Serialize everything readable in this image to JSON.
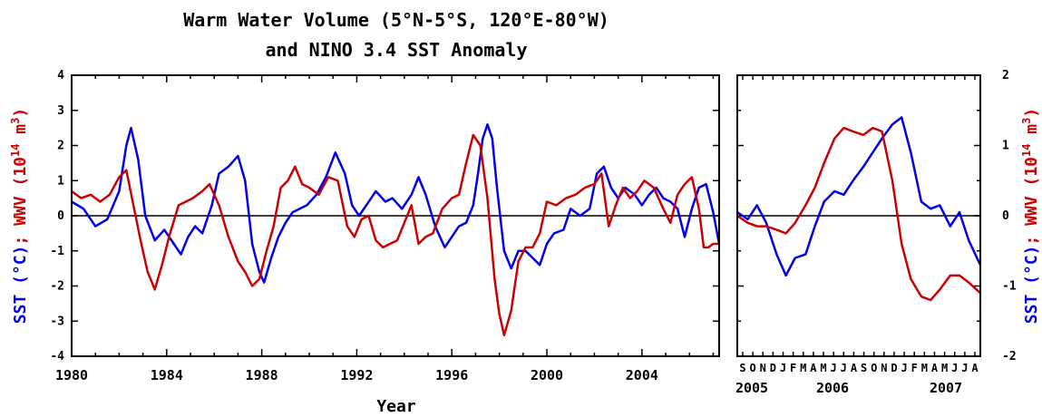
{
  "title_line1": "Warm Water Volume (5°N-5°S, 120°E-80°W)",
  "title_line2": "and NINO 3.4 SST Anomaly",
  "left_ylabel": {
    "sst": "SST (°C)",
    "sep": "; ",
    "wwv": "WWV (10",
    "sup": "14",
    "tail": " m",
    "sup3": "3",
    "close": ")"
  },
  "right_ylabel": {
    "sst": "SST (°C)",
    "sep": "; ",
    "wwv": "WWV (10",
    "sup": "14",
    "tail": " m",
    "sup3": "3",
    "close": ")"
  },
  "colors": {
    "sst": "#0000ee",
    "wwv": "#cc0000",
    "axis": "#000000"
  },
  "chart_data": [
    {
      "type": "line",
      "xlabel": "Year",
      "xlim": [
        1980,
        2007.25
      ],
      "ylim": [
        -4,
        4
      ],
      "y_ticks": [
        "-4",
        "-3",
        "-2",
        "-1",
        "0",
        "1",
        "2",
        "3",
        "4"
      ],
      "x_ticks": [
        "1980",
        "1984",
        "1988",
        "1992",
        "1996",
        "2000",
        "2004"
      ],
      "grid": false,
      "series": [
        {
          "key": "sst",
          "color": "#0000ee",
          "x": [
            1980,
            1980.5,
            1981,
            1981.5,
            1982,
            1982.3,
            1982.5,
            1982.8,
            1983.1,
            1983.5,
            1983.9,
            1984.3,
            1984.6,
            1984.9,
            1985.2,
            1985.5,
            1985.9,
            1986.2,
            1986.6,
            1987.0,
            1987.3,
            1987.6,
            1987.9,
            1988.1,
            1988.4,
            1988.7,
            1989.0,
            1989.3,
            1989.6,
            1989.9,
            1990.3,
            1990.7,
            1991.1,
            1991.5,
            1991.8,
            1992.1,
            1992.4,
            1992.8,
            1993.2,
            1993.5,
            1993.9,
            1994.3,
            1994.6,
            1994.9,
            1995.3,
            1995.7,
            1996.0,
            1996.3,
            1996.6,
            1996.9,
            1997.1,
            1997.3,
            1997.5,
            1997.7,
            1997.9,
            1998.2,
            1998.5,
            1998.8,
            1999.1,
            1999.4,
            1999.7,
            2000.0,
            2000.3,
            2000.7,
            2001.0,
            2001.4,
            2001.8,
            2002.1,
            2002.4,
            2002.7,
            2003.0,
            2003.3,
            2003.7,
            2004.0,
            2004.3,
            2004.6,
            2004.9,
            2005.2,
            2005.5,
            2005.8,
            2006.1,
            2006.4,
            2006.7,
            2007.0,
            2007.25
          ],
          "y": [
            0.4,
            0.2,
            -0.3,
            -0.1,
            0.7,
            2.0,
            2.5,
            1.6,
            0.0,
            -0.7,
            -0.4,
            -0.8,
            -1.1,
            -0.6,
            -0.3,
            -0.5,
            0.3,
            1.2,
            1.4,
            1.7,
            1.0,
            -0.8,
            -1.6,
            -1.9,
            -1.2,
            -0.6,
            -0.2,
            0.1,
            0.2,
            0.3,
            0.6,
            1.1,
            1.8,
            1.2,
            0.3,
            0.0,
            0.3,
            0.7,
            0.4,
            0.5,
            0.2,
            0.6,
            1.1,
            0.6,
            -0.3,
            -0.9,
            -0.6,
            -0.3,
            -0.2,
            0.3,
            1.2,
            2.2,
            2.6,
            2.2,
            0.8,
            -1.0,
            -1.5,
            -1.0,
            -1.0,
            -1.2,
            -1.4,
            -0.8,
            -0.5,
            -0.4,
            0.2,
            0.0,
            0.2,
            1.2,
            1.4,
            0.8,
            0.5,
            0.8,
            0.6,
            0.3,
            0.6,
            0.8,
            0.5,
            0.4,
            0.2,
            -0.6,
            0.2,
            0.8,
            0.9,
            0.1,
            -0.8
          ]
        },
        {
          "key": "wwv",
          "color": "#cc0000",
          "x": [
            1980,
            1980.4,
            1980.8,
            1981.2,
            1981.6,
            1982.0,
            1982.3,
            1982.6,
            1982.9,
            1983.2,
            1983.5,
            1983.8,
            1984.1,
            1984.5,
            1984.8,
            1985.1,
            1985.5,
            1985.8,
            1986.2,
            1986.6,
            1987.0,
            1987.3,
            1987.6,
            1987.9,
            1988.2,
            1988.5,
            1988.8,
            1989.1,
            1989.4,
            1989.7,
            1990.0,
            1990.4,
            1990.8,
            1991.2,
            1991.6,
            1991.9,
            1992.2,
            1992.5,
            1992.8,
            1993.1,
            1993.4,
            1993.7,
            1994.0,
            1994.3,
            1994.6,
            1994.9,
            1995.2,
            1995.6,
            1996.0,
            1996.3,
            1996.6,
            1996.9,
            1997.2,
            1997.5,
            1997.8,
            1998.0,
            1998.2,
            1998.5,
            1998.8,
            1999.1,
            1999.4,
            1999.7,
            2000.0,
            2000.4,
            2000.8,
            2001.2,
            2001.6,
            2002.0,
            2002.3,
            2002.6,
            2002.9,
            2003.2,
            2003.5,
            2003.8,
            2004.1,
            2004.5,
            2004.9,
            2005.2,
            2005.5,
            2005.8,
            2006.1,
            2006.4,
            2006.6,
            2006.8,
            2007.0,
            2007.25
          ],
          "y": [
            0.7,
            0.5,
            0.6,
            0.4,
            0.6,
            1.1,
            1.3,
            0.3,
            -0.7,
            -1.6,
            -2.1,
            -1.4,
            -0.6,
            0.3,
            0.4,
            0.5,
            0.7,
            0.9,
            0.3,
            -0.6,
            -1.3,
            -1.6,
            -2.0,
            -1.8,
            -1.0,
            -0.3,
            0.8,
            1.0,
            1.4,
            0.9,
            0.8,
            0.6,
            1.1,
            1.0,
            -0.3,
            -0.6,
            -0.1,
            0.0,
            -0.7,
            -0.9,
            -0.8,
            -0.7,
            -0.2,
            0.3,
            -0.8,
            -0.6,
            -0.5,
            0.2,
            0.5,
            0.6,
            1.5,
            2.3,
            2.0,
            0.5,
            -1.8,
            -2.8,
            -3.4,
            -2.7,
            -1.3,
            -0.9,
            -0.9,
            -0.5,
            0.4,
            0.3,
            0.5,
            0.6,
            0.8,
            0.9,
            1.2,
            -0.3,
            0.3,
            0.8,
            0.5,
            0.7,
            1.0,
            0.8,
            0.2,
            -0.2,
            0.6,
            0.9,
            1.1,
            0.2,
            -0.9,
            -0.9,
            -0.8,
            -0.8
          ]
        }
      ]
    },
    {
      "type": "line",
      "xlim": [
        2005.58,
        2007.68
      ],
      "ylim": [
        -2,
        2
      ],
      "y_ticks": [
        "-2",
        "-1",
        "0",
        "1",
        "2"
      ],
      "month_ticks": [
        "S",
        "O",
        "N",
        "D",
        "J",
        "F",
        "M",
        "A",
        "M",
        "J",
        "J",
        "A",
        "S",
        "O",
        "N",
        "D",
        "J",
        "F",
        "M",
        "A",
        "M",
        "J",
        "J",
        "A"
      ],
      "year_labels": [
        "2005",
        "2006",
        "2007"
      ],
      "grid": false,
      "series": [
        {
          "key": "sst",
          "color": "#0000ee",
          "x": [
            2005.58,
            2005.67,
            2005.75,
            2005.83,
            2005.92,
            2006.0,
            2006.08,
            2006.17,
            2006.25,
            2006.33,
            2006.42,
            2006.5,
            2006.58,
            2006.67,
            2006.75,
            2006.83,
            2006.92,
            2007.0,
            2007.08,
            2007.17,
            2007.25,
            2007.33,
            2007.42,
            2007.5,
            2007.58,
            2007.68
          ],
          "y": [
            0.05,
            -0.05,
            0.15,
            -0.1,
            -0.55,
            -0.85,
            -0.6,
            -0.55,
            -0.15,
            0.2,
            0.35,
            0.3,
            0.5,
            0.7,
            0.9,
            1.1,
            1.3,
            1.4,
            0.9,
            0.2,
            0.1,
            0.15,
            -0.15,
            0.05,
            -0.35,
            -0.7
          ]
        },
        {
          "key": "wwv",
          "color": "#cc0000",
          "x": [
            2005.58,
            2005.67,
            2005.75,
            2005.83,
            2005.92,
            2006.0,
            2006.08,
            2006.17,
            2006.25,
            2006.33,
            2006.42,
            2006.5,
            2006.58,
            2006.67,
            2006.75,
            2006.83,
            2006.92,
            2007.0,
            2007.08,
            2007.17,
            2007.25,
            2007.33,
            2007.42,
            2007.5,
            2007.58,
            2007.68
          ],
          "y": [
            0.0,
            -0.1,
            -0.15,
            -0.15,
            -0.2,
            -0.25,
            -0.1,
            0.15,
            0.4,
            0.75,
            1.1,
            1.25,
            1.2,
            1.15,
            1.25,
            1.2,
            0.5,
            -0.4,
            -0.9,
            -1.15,
            -1.2,
            -1.05,
            -0.85,
            -0.85,
            -0.95,
            -1.1
          ]
        }
      ]
    }
  ]
}
